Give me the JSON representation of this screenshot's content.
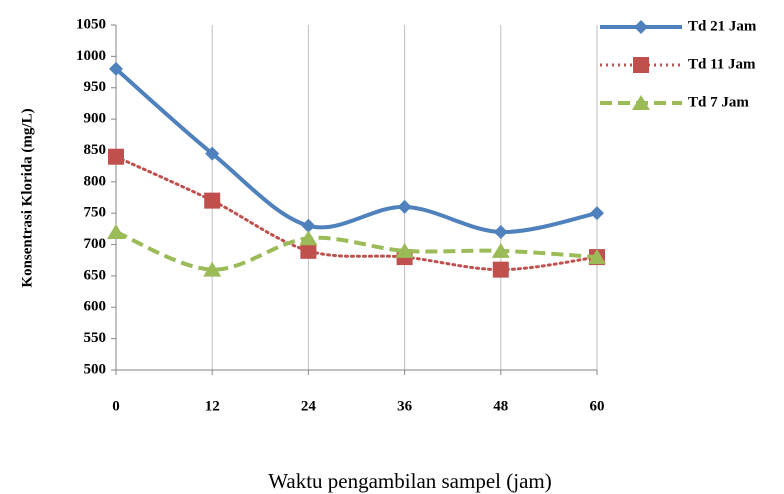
{
  "chart_data": {
    "type": "line",
    "x_label": "Waktu pengambilan sampel (jam)",
    "y_label": "Konsentrasi Klorida (mg/L)",
    "x": [
      0,
      12,
      24,
      36,
      48,
      60
    ],
    "series": [
      {
        "name": "Td 21 Jam",
        "color": "#4f81bd",
        "marker": "diamond",
        "dash": "solid",
        "values": [
          980,
          845,
          730,
          760,
          720,
          750
        ]
      },
      {
        "name": "Td 11 Jam",
        "color": "#c0504d",
        "marker": "square",
        "dash": "dotted",
        "values": [
          840,
          770,
          690,
          680,
          660,
          680
        ]
      },
      {
        "name": "Td 7 Jam",
        "color": "#9bbb59",
        "marker": "triangle",
        "dash": "dashed",
        "values": [
          720,
          660,
          710,
          690,
          690,
          680
        ]
      }
    ],
    "xlim": [
      0,
      60
    ],
    "xticks": [
      0,
      12,
      24,
      36,
      48,
      60
    ],
    "ylim": [
      500,
      1050
    ],
    "yticks": [
      500,
      550,
      600,
      650,
      700,
      750,
      800,
      850,
      900,
      950,
      1000,
      1050
    ],
    "grid": "x",
    "legend": "right"
  }
}
